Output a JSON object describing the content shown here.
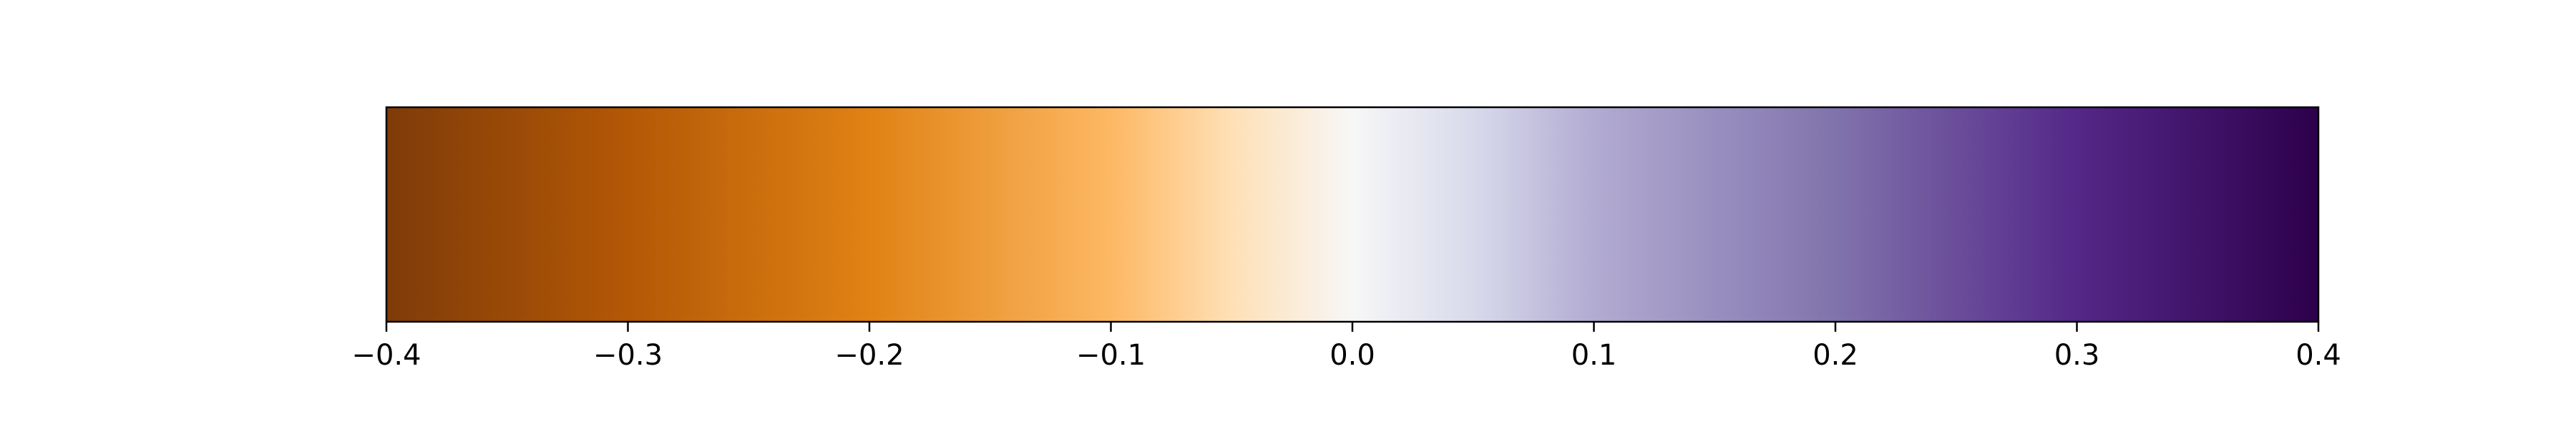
{
  "chart_data": {
    "type": "colorbar",
    "orientation": "horizontal",
    "colormap": "PuOr",
    "vmin": -0.4,
    "vmax": 0.4,
    "ticks": [
      -0.4,
      -0.3,
      -0.2,
      -0.1,
      0.0,
      0.1,
      0.2,
      0.3,
      0.4
    ],
    "tick_labels": [
      "−0.4",
      "−0.3",
      "−0.2",
      "−0.1",
      "0.0",
      "0.1",
      "0.2",
      "0.3",
      "0.4"
    ],
    "color_stops": [
      {
        "value": -0.4,
        "color": "#7f3b08"
      },
      {
        "value": -0.3,
        "color": "#b35806"
      },
      {
        "value": -0.2,
        "color": "#e08214"
      },
      {
        "value": -0.1,
        "color": "#fdb863"
      },
      {
        "value": -0.05,
        "color": "#fee0b6"
      },
      {
        "value": 0.0,
        "color": "#f7f7f7"
      },
      {
        "value": 0.05,
        "color": "#d8daeb"
      },
      {
        "value": 0.1,
        "color": "#b2abd2"
      },
      {
        "value": 0.2,
        "color": "#8073ac"
      },
      {
        "value": 0.3,
        "color": "#542788"
      },
      {
        "value": 0.4,
        "color": "#2d004b"
      }
    ],
    "title": "",
    "xlabel": "",
    "frame_color": "#000000"
  }
}
